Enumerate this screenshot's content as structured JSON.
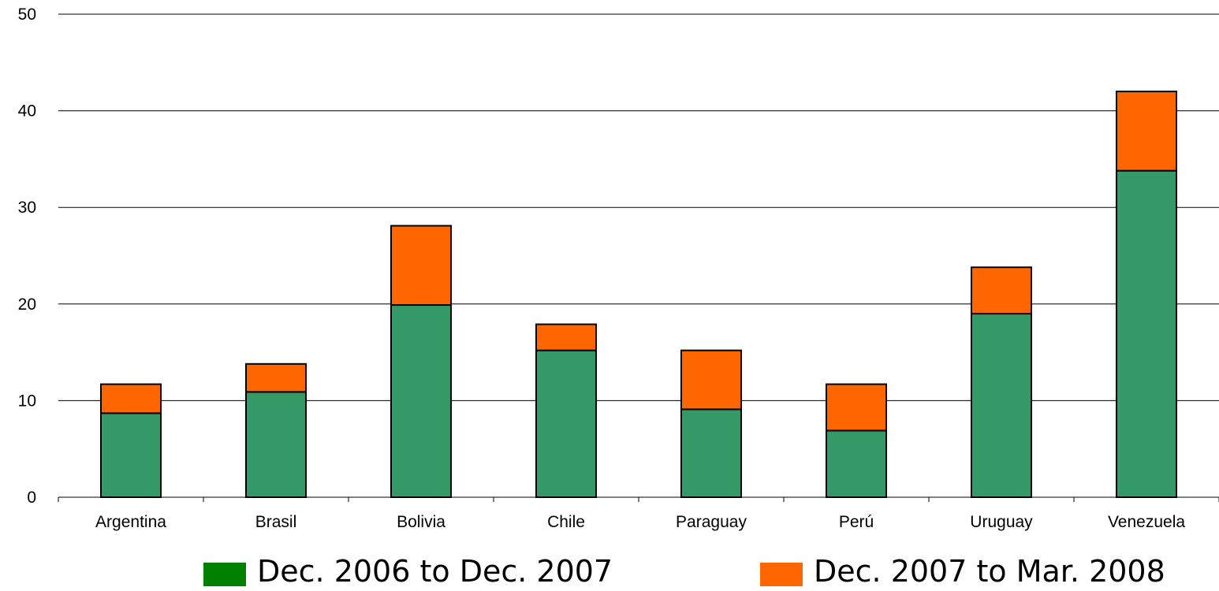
{
  "chart_data": {
    "type": "bar",
    "stacked": true,
    "categories": [
      "Argentina",
      "Brasil",
      "Bolivia",
      "Chile",
      "Paraguay",
      "Perú",
      "Uruguay",
      "Venezuela"
    ],
    "series": [
      {
        "name": "Dec. 2006 to Dec. 2007",
        "color": "#339966",
        "values": [
          8.7,
          10.9,
          19.9,
          15.2,
          9.1,
          6.9,
          19.0,
          33.8
        ]
      },
      {
        "name": "Dec. 2007 to Mar. 2008",
        "color": "#ff6600",
        "values": [
          3.0,
          2.9,
          8.2,
          2.7,
          6.1,
          4.8,
          4.8,
          8.2
        ]
      }
    ],
    "legend_swatch_colors": [
      "#008000",
      "#ff6600"
    ],
    "y_ticks": [
      0,
      10,
      20,
      30,
      40,
      50
    ],
    "ylim": [
      0,
      50
    ],
    "grid": true,
    "legend_position": "bottom"
  }
}
